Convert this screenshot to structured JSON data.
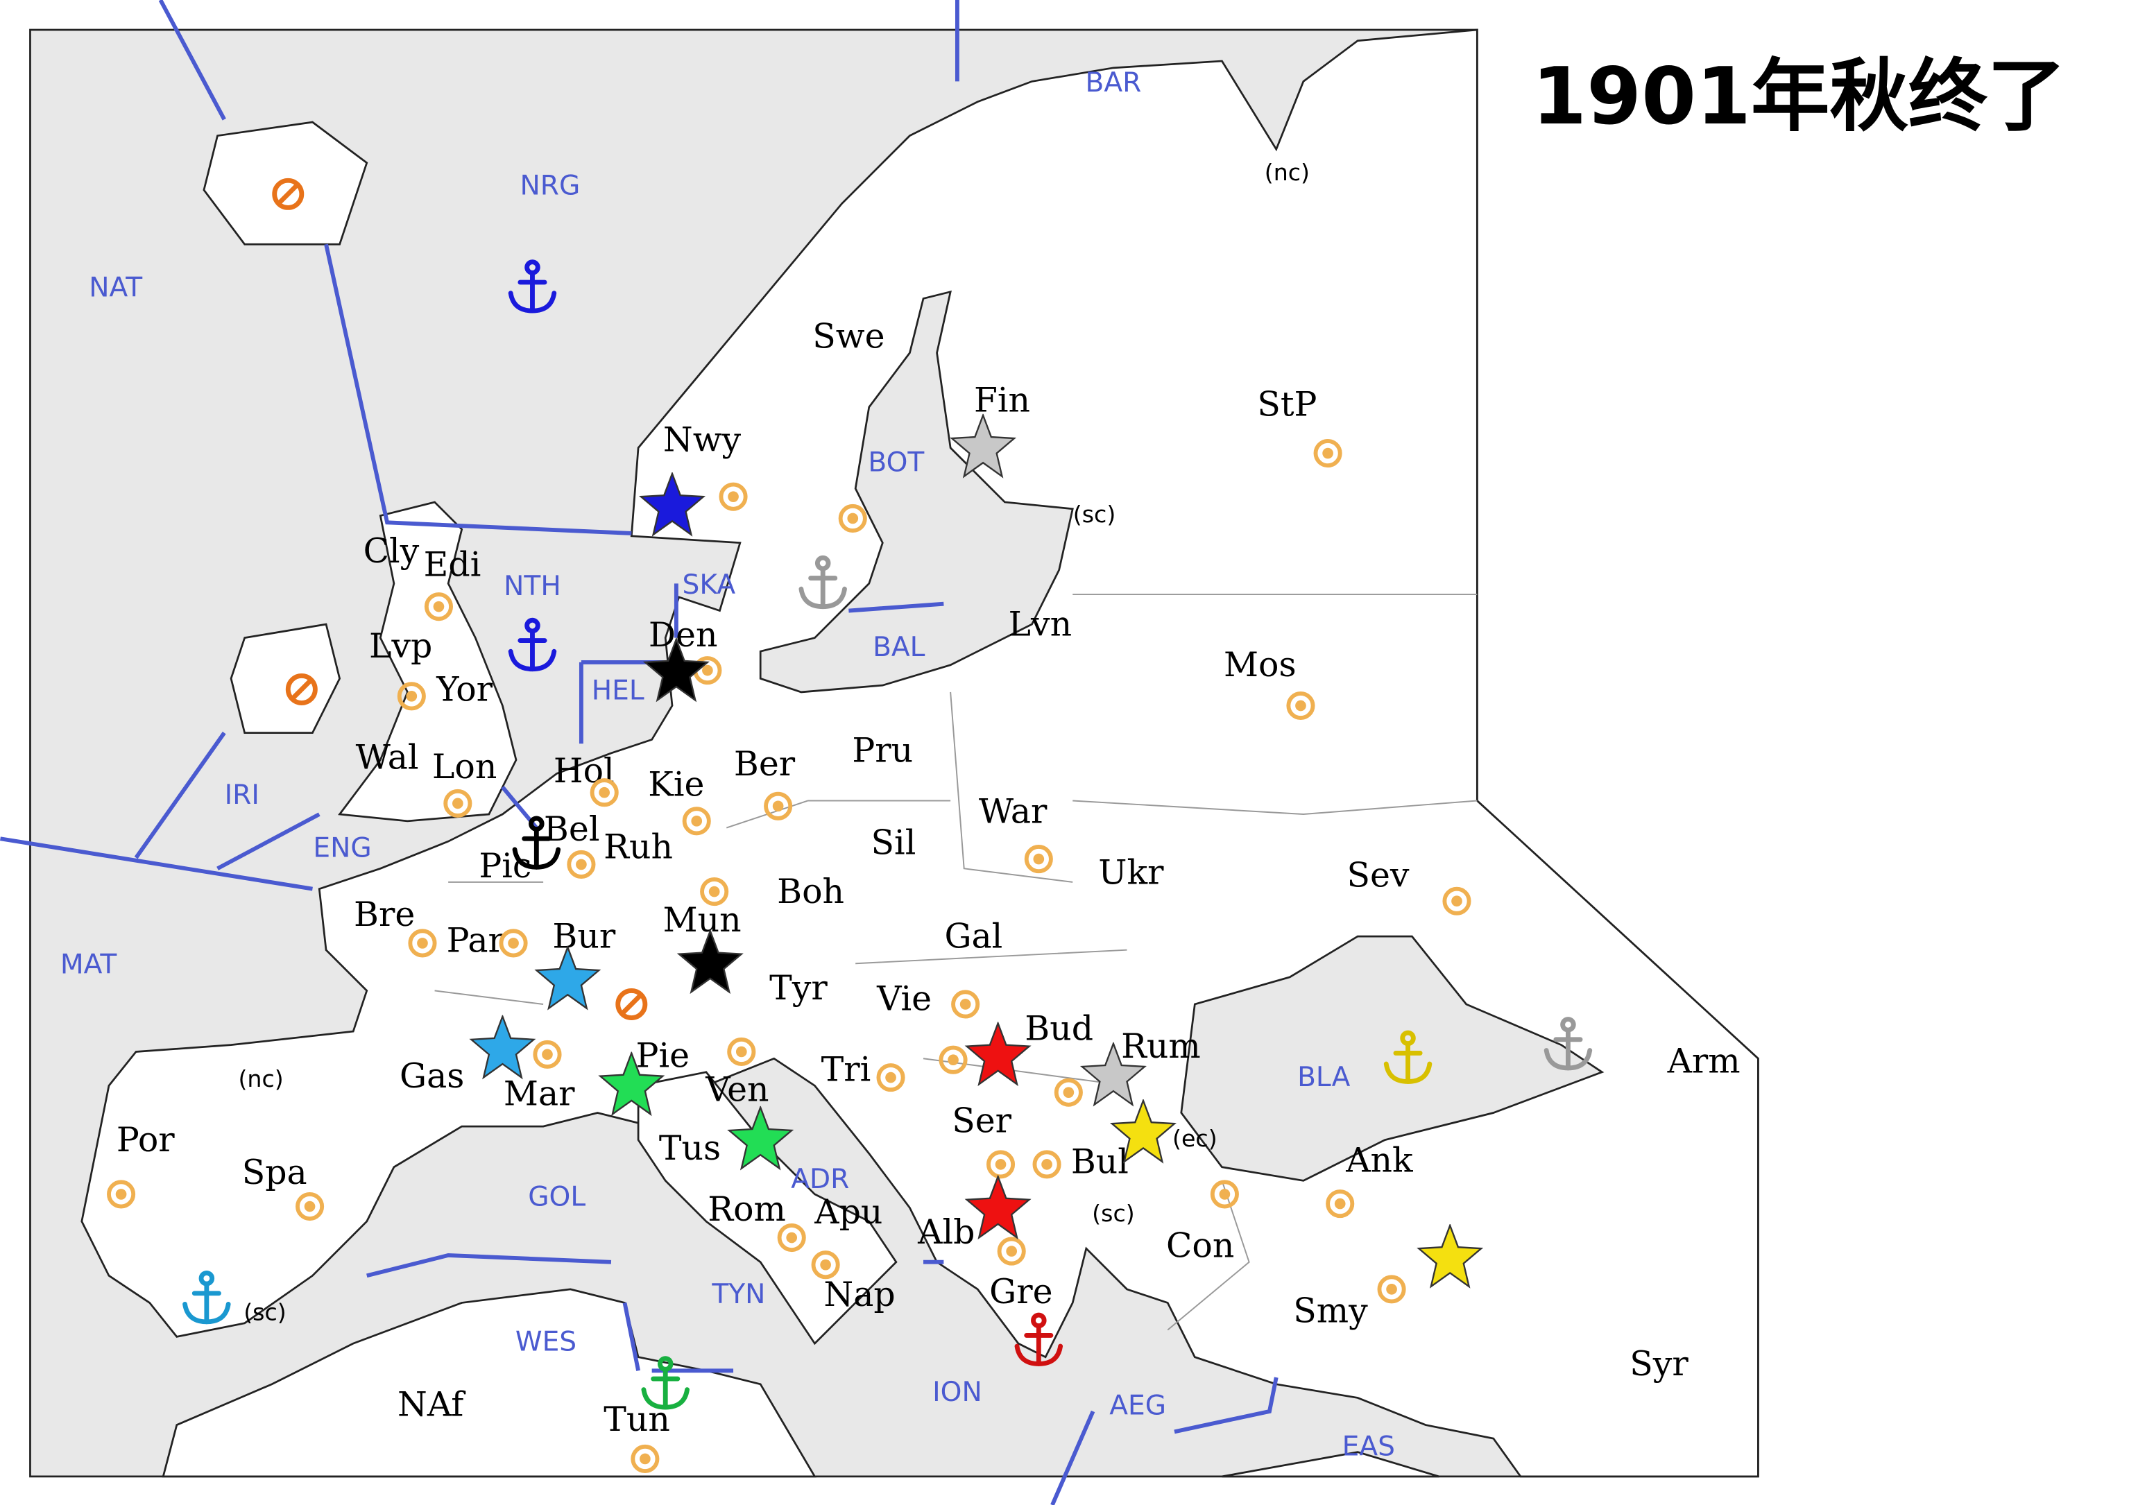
{
  "title": "1901年秋终了",
  "sea_zones": [
    "BAR",
    "NRG",
    "NAT",
    "NTH",
    "SKA",
    "BOT",
    "BAL",
    "HEL",
    "IRI",
    "ENG",
    "MAT",
    "GOL",
    "ADR",
    "TYN",
    "WES",
    "ION",
    "AEG",
    "EAS",
    "BLA"
  ],
  "land_provinces": [
    "Swe",
    "Nwy",
    "Fin",
    "StP",
    "Cly",
    "Edi",
    "Lvp",
    "Yor",
    "Den",
    "Lvn",
    "Mos",
    "Wal",
    "Lon",
    "Hol",
    "Kie",
    "Ber",
    "Pru",
    "War",
    "Sil",
    "Bel",
    "Ruh",
    "Pic",
    "Boh",
    "Ukr",
    "Sev",
    "Bre",
    "Par",
    "Bur",
    "Mun",
    "Gal",
    "Tyr",
    "Vie",
    "Bud",
    "Rum",
    "Arm",
    "Gas",
    "Mar",
    "Pie",
    "Ven",
    "Tri",
    "Ser",
    "Bul",
    "Ank",
    "Por",
    "Spa",
    "Tus",
    "Rom",
    "Apu",
    "Alb",
    "Con",
    "Gre",
    "Nap",
    "Smy",
    "Syr",
    "NAf",
    "Tun"
  ],
  "coast_labels": [
    "(nc)",
    "(sc)",
    "(nc)",
    "(ec)",
    "(sc)",
    "(sc)"
  ]
}
